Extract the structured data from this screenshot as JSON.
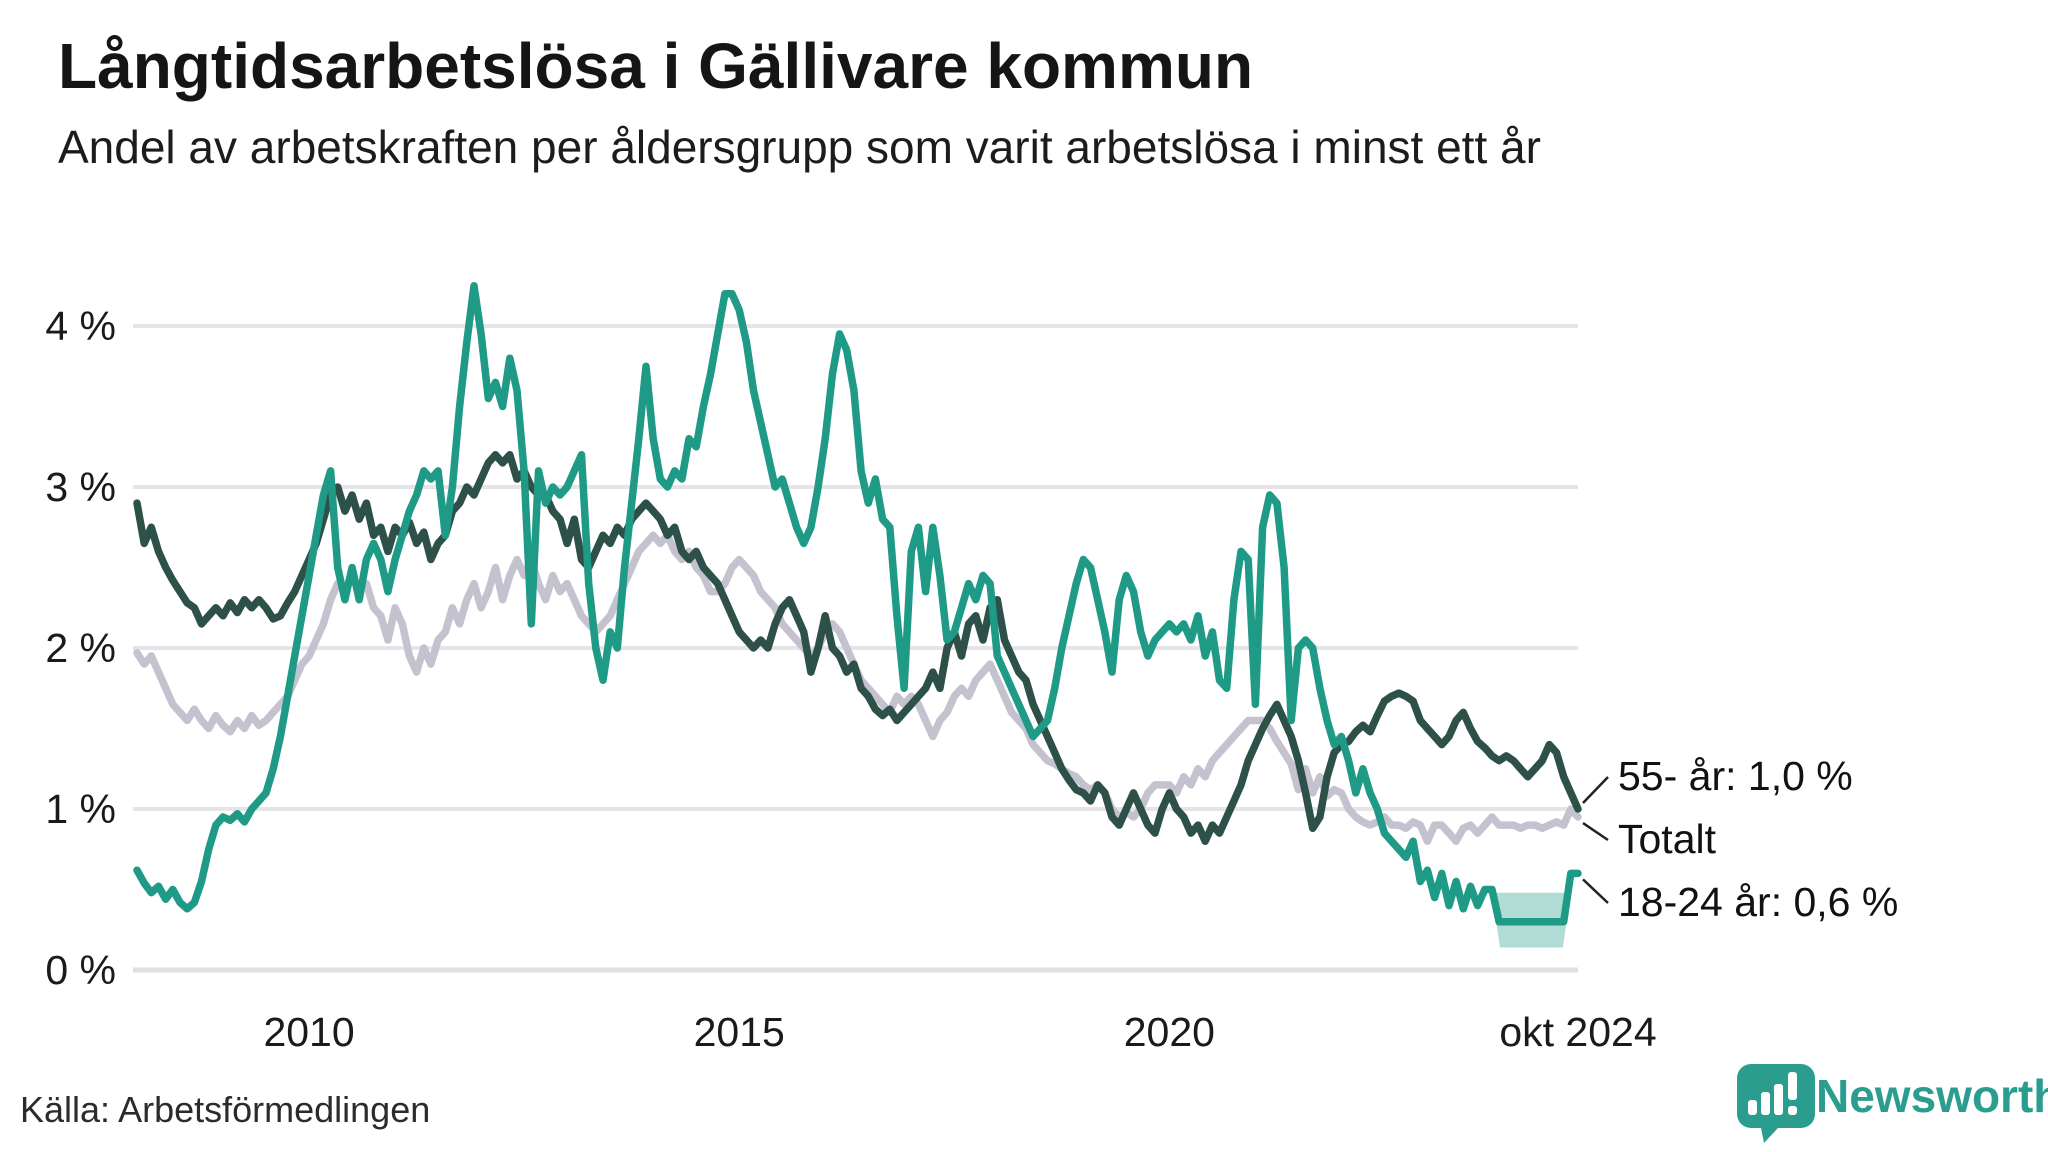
{
  "title": "Långtidsarbetslösa i Gällivare kommun",
  "subtitle": "Andel av arbetskraften per åldersgrupp som varit arbetslösa i minst ett år",
  "source": "Källa: Arbetsförmedlingen",
  "branding": {
    "name": "Newsworthy",
    "color": "#2A9D8F",
    "icon": "bar-chart-speech-bubble-icon"
  },
  "colors": {
    "background": "#ffffff",
    "gridline": "#E5E4E9",
    "zero_line": "#DFDFE4",
    "text": "#151515",
    "leader_line": "#222222",
    "series_18_24": "#1E9A86",
    "series_55": "#2D5049",
    "series_total": "#C5C2CF",
    "highlight_band": "#1E9A86"
  },
  "chart_data": {
    "type": "line",
    "title": "Långtidsarbetslösa i Gällivare kommun",
    "subtitle": "Andel av arbetskraften per åldersgrupp som varit arbetslösa i minst ett år",
    "x_unit": "month",
    "x_start": "2008-01",
    "x_end": "2024-10",
    "ylim": [
      0,
      4.35
    ],
    "grid": "horizontal",
    "y_ticks": [
      0,
      1,
      2,
      3,
      4
    ],
    "y_tick_labels": [
      "0 %",
      "1 %",
      "2 %",
      "3 %",
      "4 %"
    ],
    "x_tick_indices": [
      24,
      84,
      144,
      201
    ],
    "x_tick_labels": [
      "2010",
      "2015",
      "2020",
      "okt 2024"
    ],
    "legend_position": "end-of-line-labels",
    "series": [
      {
        "name": "Totalt",
        "end_label": "Totalt",
        "final_value": 0.95,
        "color": "#C5C2CF",
        "values": [
          1.97,
          1.9,
          1.95,
          1.85,
          1.75,
          1.65,
          1.6,
          1.55,
          1.62,
          1.55,
          1.5,
          1.58,
          1.52,
          1.48,
          1.55,
          1.5,
          1.58,
          1.52,
          1.55,
          1.6,
          1.65,
          1.7,
          1.8,
          1.9,
          1.95,
          2.05,
          2.15,
          2.3,
          2.4,
          2.35,
          2.45,
          2.35,
          2.4,
          2.25,
          2.2,
          2.05,
          2.25,
          2.15,
          1.95,
          1.85,
          2.0,
          1.9,
          2.05,
          2.1,
          2.25,
          2.15,
          2.3,
          2.4,
          2.25,
          2.35,
          2.5,
          2.3,
          2.45,
          2.55,
          2.45,
          2.55,
          2.4,
          2.3,
          2.45,
          2.35,
          2.4,
          2.3,
          2.2,
          2.15,
          2.1,
          2.15,
          2.2,
          2.3,
          2.4,
          2.5,
          2.6,
          2.65,
          2.7,
          2.65,
          2.7,
          2.6,
          2.55,
          2.6,
          2.5,
          2.45,
          2.35,
          2.35,
          2.4,
          2.5,
          2.55,
          2.5,
          2.45,
          2.35,
          2.3,
          2.25,
          2.15,
          2.1,
          2.05,
          2.0,
          1.95,
          2.0,
          2.1,
          2.15,
          2.1,
          2.0,
          1.9,
          1.8,
          1.75,
          1.7,
          1.65,
          1.6,
          1.7,
          1.65,
          1.7,
          1.65,
          1.55,
          1.45,
          1.55,
          1.6,
          1.7,
          1.75,
          1.7,
          1.8,
          1.85,
          1.9,
          1.8,
          1.7,
          1.6,
          1.55,
          1.5,
          1.4,
          1.35,
          1.3,
          1.28,
          1.25,
          1.22,
          1.2,
          1.15,
          1.12,
          1.15,
          1.1,
          1.0,
          0.95,
          0.98,
          0.95,
          1.0,
          1.1,
          1.15,
          1.15,
          1.15,
          1.1,
          1.2,
          1.15,
          1.25,
          1.2,
          1.3,
          1.35,
          1.4,
          1.45,
          1.5,
          1.55,
          1.55,
          1.55,
          1.5,
          1.42,
          1.35,
          1.28,
          1.12,
          1.25,
          1.1,
          1.2,
          1.08,
          1.12,
          1.1,
          1.0,
          0.95,
          0.92,
          0.9,
          0.92,
          0.95,
          0.9,
          0.9,
          0.88,
          0.92,
          0.9,
          0.8,
          0.9,
          0.9,
          0.85,
          0.8,
          0.88,
          0.9,
          0.85,
          0.9,
          0.95,
          0.9,
          0.9,
          0.9,
          0.88,
          0.9,
          0.9,
          0.88,
          0.9,
          0.92,
          0.9,
          1.0,
          0.95
        ]
      },
      {
        "name": "55- år",
        "end_label": "55- år: 1,0 %",
        "final_value": 1.0,
        "color": "#2D5049",
        "values": [
          2.9,
          2.65,
          2.75,
          2.6,
          2.5,
          2.42,
          2.35,
          2.28,
          2.25,
          2.15,
          2.2,
          2.25,
          2.2,
          2.28,
          2.22,
          2.3,
          2.25,
          2.3,
          2.25,
          2.18,
          2.2,
          2.28,
          2.35,
          2.45,
          2.55,
          2.65,
          2.8,
          2.95,
          3.0,
          2.85,
          2.95,
          2.8,
          2.9,
          2.7,
          2.75,
          2.6,
          2.75,
          2.7,
          2.78,
          2.65,
          2.72,
          2.55,
          2.65,
          2.7,
          2.85,
          2.9,
          3.0,
          2.95,
          3.05,
          3.15,
          3.2,
          3.15,
          3.2,
          3.05,
          3.1,
          3.0,
          2.95,
          2.95,
          2.85,
          2.8,
          2.65,
          2.8,
          2.55,
          2.5,
          2.6,
          2.7,
          2.65,
          2.75,
          2.7,
          2.8,
          2.85,
          2.9,
          2.85,
          2.8,
          2.7,
          2.75,
          2.6,
          2.55,
          2.6,
          2.5,
          2.45,
          2.4,
          2.3,
          2.2,
          2.1,
          2.05,
          2.0,
          2.05,
          2.0,
          2.15,
          2.25,
          2.3,
          2.2,
          2.1,
          1.85,
          2.0,
          2.2,
          2.0,
          1.95,
          1.85,
          1.9,
          1.75,
          1.7,
          1.62,
          1.58,
          1.62,
          1.55,
          1.6,
          1.65,
          1.7,
          1.75,
          1.85,
          1.75,
          2.0,
          2.1,
          1.95,
          2.15,
          2.2,
          2.05,
          2.25,
          2.3,
          2.05,
          1.95,
          1.85,
          1.8,
          1.65,
          1.55,
          1.45,
          1.35,
          1.25,
          1.18,
          1.12,
          1.1,
          1.05,
          1.15,
          1.1,
          0.95,
          0.9,
          1.0,
          1.1,
          1.0,
          0.9,
          0.85,
          1.0,
          1.1,
          1.0,
          0.95,
          0.85,
          0.9,
          0.8,
          0.9,
          0.85,
          0.95,
          1.05,
          1.15,
          1.3,
          1.4,
          1.5,
          1.58,
          1.65,
          1.55,
          1.45,
          1.3,
          1.1,
          0.88,
          0.95,
          1.2,
          1.35,
          1.4,
          1.42,
          1.48,
          1.52,
          1.48,
          1.58,
          1.67,
          1.7,
          1.72,
          1.7,
          1.67,
          1.55,
          1.5,
          1.45,
          1.4,
          1.45,
          1.55,
          1.6,
          1.5,
          1.42,
          1.38,
          1.33,
          1.3,
          1.33,
          1.3,
          1.25,
          1.2,
          1.25,
          1.3,
          1.4,
          1.35,
          1.2,
          1.1,
          1.0
        ]
      },
      {
        "name": "18-24 år",
        "end_label": "18-24 år: 0,6 %",
        "final_value": 0.6,
        "color": "#1E9A86",
        "values": [
          0.62,
          0.54,
          0.48,
          0.52,
          0.44,
          0.5,
          0.42,
          0.38,
          0.42,
          0.55,
          0.75,
          0.9,
          0.95,
          0.93,
          0.97,
          0.92,
          1.0,
          1.05,
          1.1,
          1.25,
          1.45,
          1.7,
          1.95,
          2.2,
          2.45,
          2.7,
          2.95,
          3.1,
          2.5,
          2.3,
          2.5,
          2.3,
          2.55,
          2.65,
          2.55,
          2.35,
          2.55,
          2.7,
          2.85,
          2.95,
          3.1,
          3.05,
          3.1,
          2.7,
          3.0,
          3.5,
          3.9,
          4.25,
          3.95,
          3.55,
          3.65,
          3.5,
          3.8,
          3.6,
          3.1,
          2.15,
          3.1,
          2.9,
          3.0,
          2.95,
          3.0,
          3.1,
          3.2,
          2.4,
          2.0,
          1.8,
          2.1,
          2.0,
          2.5,
          2.9,
          3.3,
          3.75,
          3.3,
          3.05,
          3.0,
          3.1,
          3.05,
          3.3,
          3.25,
          3.5,
          3.7,
          3.95,
          4.2,
          4.2,
          4.1,
          3.9,
          3.6,
          3.4,
          3.2,
          3.0,
          3.05,
          2.9,
          2.75,
          2.65,
          2.75,
          3.0,
          3.3,
          3.7,
          3.95,
          3.85,
          3.6,
          3.1,
          2.9,
          3.05,
          2.8,
          2.75,
          2.2,
          1.75,
          2.6,
          2.75,
          2.35,
          2.75,
          2.45,
          2.05,
          2.1,
          2.25,
          2.4,
          2.3,
          2.45,
          2.4,
          1.95,
          1.85,
          1.75,
          1.65,
          1.55,
          1.45,
          1.5,
          1.55,
          1.75,
          2.0,
          2.2,
          2.4,
          2.55,
          2.5,
          2.3,
          2.1,
          1.85,
          2.3,
          2.45,
          2.35,
          2.1,
          1.95,
          2.05,
          2.1,
          2.15,
          2.1,
          2.15,
          2.05,
          2.2,
          1.95,
          2.1,
          1.8,
          1.75,
          2.3,
          2.6,
          2.55,
          1.65,
          2.75,
          2.95,
          2.9,
          2.5,
          1.55,
          2.0,
          2.05,
          2.0,
          1.75,
          1.55,
          1.4,
          1.45,
          1.3,
          1.1,
          1.25,
          1.1,
          1.0,
          0.85,
          0.8,
          0.75,
          0.7,
          0.8,
          0.55,
          0.62,
          0.45,
          0.6,
          0.4,
          0.55,
          0.38,
          0.52,
          0.4,
          0.5,
          0.5,
          0.3,
          0.3,
          0.3,
          0.3,
          0.3,
          0.3,
          0.3,
          0.3,
          0.3,
          0.3,
          0.6,
          0.6
        ]
      }
    ],
    "highlight_band": {
      "series": "18-24 år",
      "from_index": 189,
      "to_index": 200,
      "top_value": 0.48,
      "bottom_value": 0.14,
      "opacity": 0.35
    }
  }
}
